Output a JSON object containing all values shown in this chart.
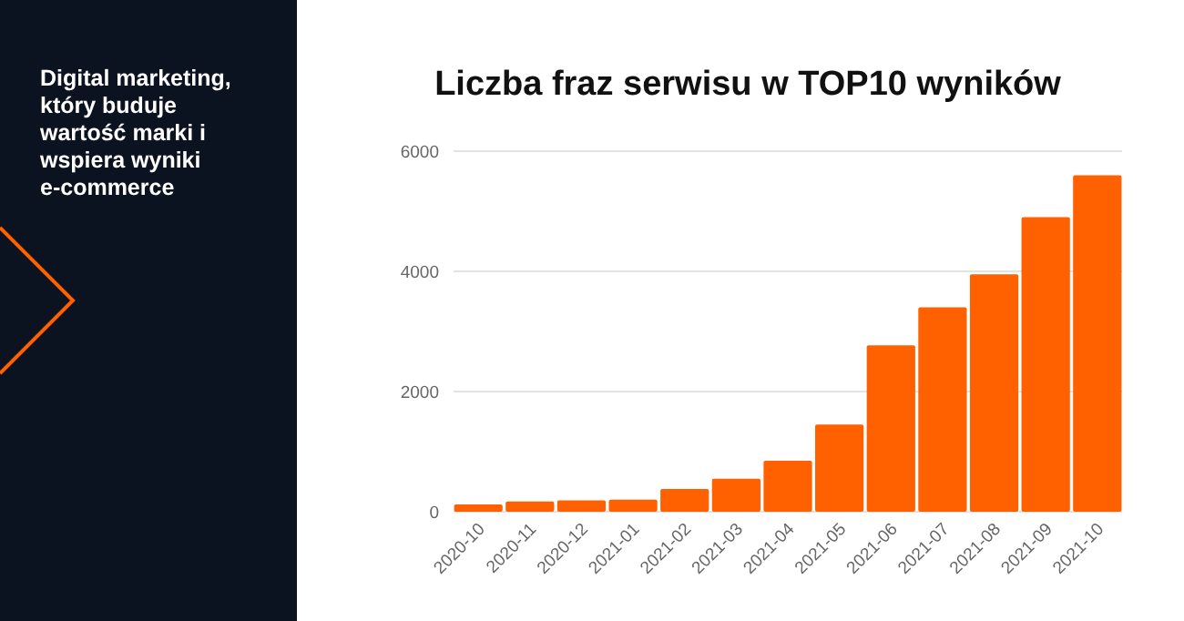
{
  "chart_data": {
    "type": "bar",
    "title": "Liczba fraz serwisu w TOP10 wyników",
    "categories": [
      "2020-10",
      "2020-11",
      "2020-12",
      "2021-01",
      "2021-02",
      "2021-03",
      "2021-04",
      "2021-05",
      "2021-06",
      "2021-07",
      "2021-08",
      "2021-09",
      "2021-10"
    ],
    "values": [
      120,
      170,
      190,
      200,
      380,
      550,
      850,
      1450,
      2770,
      3400,
      3950,
      4900,
      5600
    ],
    "color": "#ff6000",
    "ylim": [
      0,
      6000
    ],
    "yticks": [
      0,
      2000,
      4000,
      6000
    ],
    "grid": "y",
    "annotations": [
      "Digital marketing, który buduje wartość marki i wspiera wyniki e-commerce"
    ]
  }
}
